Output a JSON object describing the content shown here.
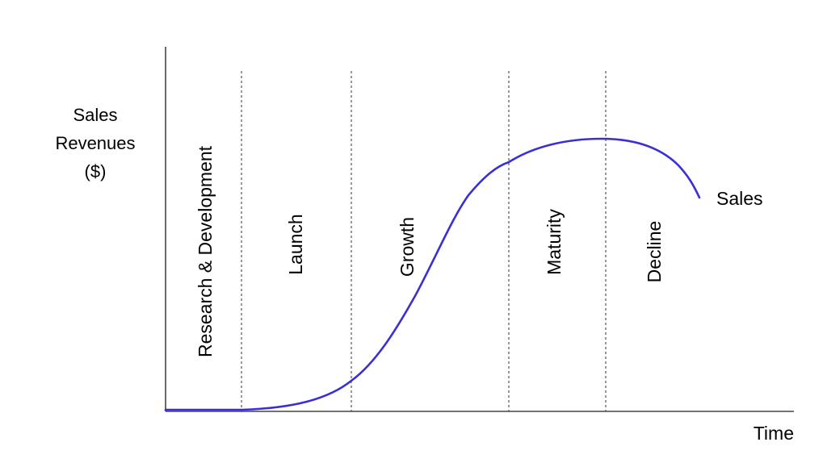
{
  "chart_data": {
    "type": "line",
    "ylabel": [
      "Sales",
      "Revenues",
      "($)"
    ],
    "xlabel": "Time",
    "stages": [
      "Research & Development",
      "Launch",
      "Growth",
      "Maturity",
      "Decline"
    ],
    "series": [
      {
        "name": "Sales",
        "color": "#3a2fd6"
      }
    ],
    "grid": false,
    "stage_dividers": "dashed"
  }
}
